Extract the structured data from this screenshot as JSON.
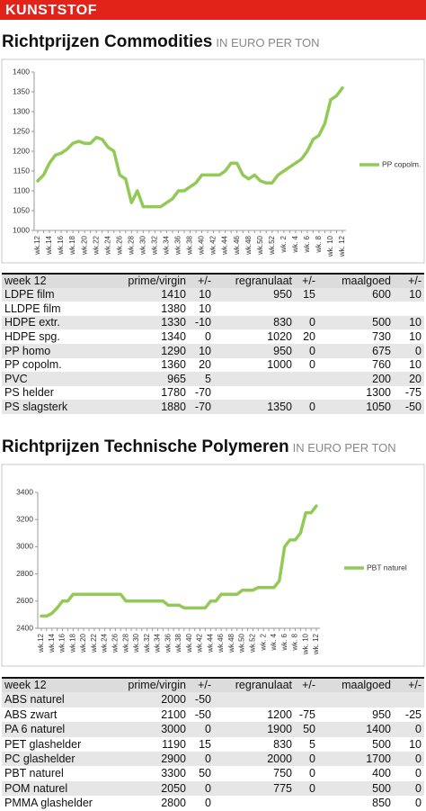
{
  "header": "KUNSTSTOF",
  "chart_data": [
    {
      "type": "line",
      "title": "Richtprijzen Commodities",
      "subtitle": "IN EURO PER TON",
      "categories": [
        "wk.12",
        null,
        "wk.14",
        null,
        "wk.16",
        null,
        "wk.18",
        null,
        "wk.20",
        null,
        "wk.22",
        null,
        "wk.24",
        null,
        "wk.26",
        null,
        "wk.28",
        null,
        "wk.30",
        null,
        "wk.32",
        null,
        "wk.34",
        null,
        "wk.36",
        null,
        "wk.38",
        null,
        "wk.40",
        null,
        "wk.42",
        null,
        "wk.44",
        null,
        "wk.46",
        null,
        "wk.48",
        null,
        "wk.50",
        null,
        "wk.52",
        null,
        "wk. 2",
        null,
        "wk. 4",
        null,
        "wk. 6",
        null,
        "wk. 8",
        null,
        "wk. 10",
        null,
        "wk. 12"
      ],
      "series": [
        {
          "name": "PP copolm.",
          "color": "#92c957",
          "values": [
            1125,
            1140,
            1170,
            1190,
            1195,
            1205,
            1220,
            1225,
            1220,
            1220,
            1235,
            1230,
            1210,
            1200,
            1140,
            1130,
            1070,
            1100,
            1060,
            1060,
            1060,
            1060,
            1070,
            1080,
            1100,
            1100,
            1110,
            1120,
            1140,
            1140,
            1140,
            1140,
            1150,
            1170,
            1170,
            1140,
            1130,
            1140,
            1125,
            1120,
            1120,
            1140,
            1150,
            1160,
            1170,
            1180,
            1200,
            1230,
            1240,
            1270,
            1330,
            1340,
            1360
          ]
        }
      ],
      "ylim": [
        1000,
        1400
      ],
      "yticks": [
        1000,
        1050,
        1100,
        1150,
        1200,
        1250,
        1300,
        1350,
        1400
      ],
      "grid": false,
      "legend": "right"
    },
    {
      "type": "line",
      "title": "Richtprijzen Technische Polymeren",
      "subtitle": "IN EURO PER TON",
      "categories": [
        "wk.12",
        null,
        "wk.14",
        null,
        "wk.16",
        null,
        "wk.18",
        null,
        "wk.20",
        null,
        "wk.22",
        null,
        "wk.24",
        null,
        "wk.26",
        null,
        "wk.28",
        null,
        "wk.30",
        null,
        "wk.32",
        null,
        "wk.34",
        null,
        "wk.36",
        null,
        "wk.38",
        null,
        "wk.40",
        null,
        "wk.42",
        null,
        "wk.44",
        null,
        "wk.46",
        null,
        "wk.48",
        null,
        "wk.50",
        null,
        "wk.52",
        null,
        "wk. 2",
        null,
        "wk. 4",
        null,
        "wk. 6",
        null,
        "wk. 8",
        null,
        "wk. 10",
        null,
        "wk. 12"
      ],
      "series": [
        {
          "name": "PBT naturel",
          "color": "#92c957",
          "values": [
            2490,
            2490,
            2510,
            2550,
            2600,
            2600,
            2650,
            2650,
            2650,
            2650,
            2650,
            2650,
            2650,
            2650,
            2650,
            2650,
            2600,
            2600,
            2600,
            2600,
            2600,
            2600,
            2600,
            2600,
            2570,
            2570,
            2570,
            2550,
            2550,
            2550,
            2550,
            2550,
            2600,
            2600,
            2650,
            2650,
            2650,
            2650,
            2680,
            2680,
            2680,
            2700,
            2700,
            2700,
            2700,
            2750,
            3000,
            3050,
            3050,
            3100,
            3250,
            3250,
            3300
          ]
        }
      ],
      "ylim": [
        2400,
        3400
      ],
      "yticks": [
        2400,
        2600,
        2800,
        3000,
        3200,
        3400
      ],
      "grid": false,
      "legend": "right"
    }
  ],
  "tables": [
    {
      "columns": [
        "week 12",
        "prime/virgin",
        "+/-",
        "regranulaat",
        "+/-",
        "maalgoed",
        "+/-"
      ],
      "rows": [
        [
          "LDPE film",
          1410,
          10,
          950,
          15,
          600,
          10
        ],
        [
          "LLDPE film",
          1380,
          10,
          null,
          null,
          null,
          null
        ],
        [
          "HDPE extr.",
          1330,
          -10,
          830,
          0,
          500,
          10
        ],
        [
          "HDPE spg.",
          1340,
          0,
          1020,
          20,
          730,
          10
        ],
        [
          "PP homo",
          1290,
          10,
          950,
          0,
          675,
          0
        ],
        [
          "PP copolm.",
          1360,
          20,
          1000,
          0,
          760,
          10
        ],
        [
          "PVC",
          965,
          5,
          null,
          null,
          200,
          20
        ],
        [
          "PS helder",
          1780,
          -70,
          null,
          null,
          1300,
          -75
        ],
        [
          "PS slagsterk",
          1880,
          -70,
          1350,
          0,
          1050,
          -50
        ]
      ]
    },
    {
      "columns": [
        "week 12",
        "prime/virgin",
        "+/-",
        "regranulaat",
        "+/-",
        "maalgoed",
        "+/-"
      ],
      "rows": [
        [
          "ABS naturel",
          2000,
          -50,
          null,
          null,
          null,
          null
        ],
        [
          "ABS zwart",
          2100,
          -50,
          1200,
          -75,
          950,
          -25
        ],
        [
          "PA 6 naturel",
          3000,
          0,
          1900,
          50,
          1400,
          0
        ],
        [
          "PET glashelder",
          1190,
          15,
          830,
          5,
          500,
          10
        ],
        [
          "PC glashelder",
          2900,
          0,
          2000,
          0,
          1700,
          0
        ],
        [
          "PBT naturel",
          3300,
          50,
          750,
          0,
          400,
          0
        ],
        [
          "POM naturel",
          2050,
          0,
          775,
          0,
          500,
          0
        ],
        [
          "PMMA glashelder",
          2800,
          0,
          null,
          null,
          850,
          0
        ]
      ]
    }
  ]
}
